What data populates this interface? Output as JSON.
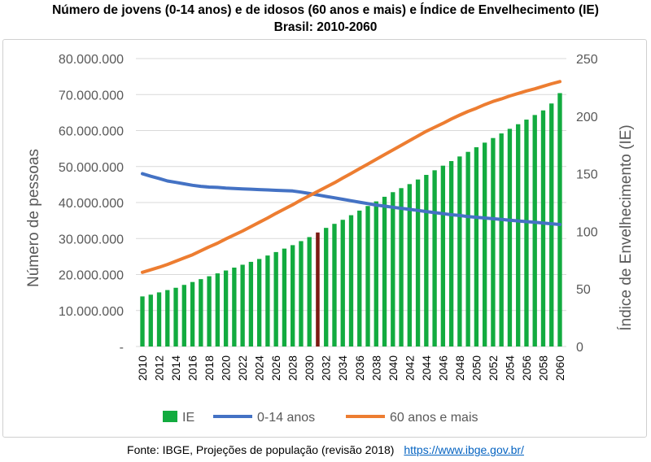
{
  "title_line1": "Número de jovens (0-14 anos) e de idosos (60 anos e mais) e Índice de Envelhecimento (IE)",
  "title_line2": "Brasil: 2010-2060",
  "source_text": "Fonte: IBGE, Projeções de população (revisão 2018)",
  "source_link": "https://www.ibge.gov.br/",
  "colors": {
    "ie": "#12ab3f",
    "young": "#4472c4",
    "elderly": "#ed7d31",
    "marker": "#7b1a12",
    "grid": "#d9d9d9",
    "text": "#595959"
  },
  "chart_data": {
    "type": "bar+line",
    "title": "Número de jovens (0-14 anos) e de idosos (60 anos e mais) e Índice de Envelhecimento (IE) Brasil: 2010-2060",
    "x": [
      2010,
      2011,
      2012,
      2013,
      2014,
      2015,
      2016,
      2017,
      2018,
      2019,
      2020,
      2021,
      2022,
      2023,
      2024,
      2025,
      2026,
      2027,
      2028,
      2029,
      2030,
      2031,
      2032,
      2033,
      2034,
      2035,
      2036,
      2037,
      2038,
      2039,
      2040,
      2041,
      2042,
      2043,
      2044,
      2045,
      2046,
      2047,
      2048,
      2049,
      2050,
      2051,
      2052,
      2053,
      2054,
      2055,
      2056,
      2057,
      2058,
      2059,
      2060
    ],
    "xticks": [
      "2010",
      "2012",
      "2014",
      "2016",
      "2018",
      "2020",
      "2022",
      "2024",
      "2026",
      "2028",
      "2030",
      "2032",
      "2034",
      "2036",
      "2038",
      "2040",
      "2042",
      "2044",
      "2046",
      "2048",
      "2050",
      "2052",
      "2054",
      "2056",
      "2058",
      "2060"
    ],
    "ylabel": "Número de pessoas",
    "ylabel_right": "Índice de Envelhecimento (IE)",
    "ylim": [
      0,
      80000000
    ],
    "ylim_right": [
      0,
      250
    ],
    "yticks_left": [
      "-",
      "10.000.000",
      "20.000.000",
      "30.000.000",
      "40.000.000",
      "50.000.000",
      "60.000.000",
      "70.000.000",
      "80.000.000"
    ],
    "yticks_right": [
      "0",
      "50",
      "100",
      "150",
      "200",
      "250"
    ],
    "legend_position": "bottom",
    "highlight_year": 2031,
    "series": [
      {
        "name": "IE",
        "type": "bar",
        "axis": "right",
        "values": [
          43.5,
          45,
          47,
          49,
          51,
          53.5,
          56,
          58.5,
          61,
          63.5,
          66,
          68.5,
          71,
          73.5,
          76,
          79,
          82,
          85,
          88,
          91.5,
          95,
          99,
          103,
          106.5,
          110,
          114,
          118,
          122,
          126,
          130,
          134,
          137.5,
          141,
          145,
          149,
          153,
          157,
          161,
          165,
          169,
          173,
          177,
          181,
          185,
          189,
          193,
          197,
          201,
          205,
          211,
          220
        ]
      },
      {
        "name": "0-14 anos",
        "type": "line",
        "axis": "left",
        "values": [
          48000000,
          47300000,
          46700000,
          46000000,
          45600000,
          45200000,
          44800000,
          44500000,
          44300000,
          44200000,
          44000000,
          43900000,
          43800000,
          43700000,
          43600000,
          43500000,
          43400000,
          43300000,
          43200000,
          42900000,
          42500000,
          42100000,
          41700000,
          41300000,
          40900000,
          40500000,
          40100000,
          39700000,
          39300000,
          39000000,
          38700000,
          38400000,
          38100000,
          37800000,
          37500000,
          37200000,
          36900000,
          36600000,
          36400000,
          36100000,
          35900000,
          35700000,
          35500000,
          35300000,
          35100000,
          34900000,
          34700000,
          34500000,
          34300000,
          34100000,
          33900000
        ]
      },
      {
        "name": "60 anos e mais",
        "type": "line",
        "axis": "left",
        "values": [
          20600000,
          21300000,
          22000000,
          22800000,
          23700000,
          24600000,
          25500000,
          26600000,
          27700000,
          28700000,
          29900000,
          31000000,
          32100000,
          33300000,
          34500000,
          35700000,
          37000000,
          38200000,
          39400000,
          40700000,
          41900000,
          43100000,
          44300000,
          45500000,
          46800000,
          48100000,
          49400000,
          50700000,
          52000000,
          53300000,
          54600000,
          55900000,
          57200000,
          58500000,
          59800000,
          60900000,
          62000000,
          63200000,
          64300000,
          65300000,
          66200000,
          67200000,
          68100000,
          68800000,
          69600000,
          70300000,
          71000000,
          71600000,
          72300000,
          73000000,
          73600000
        ]
      }
    ]
  }
}
